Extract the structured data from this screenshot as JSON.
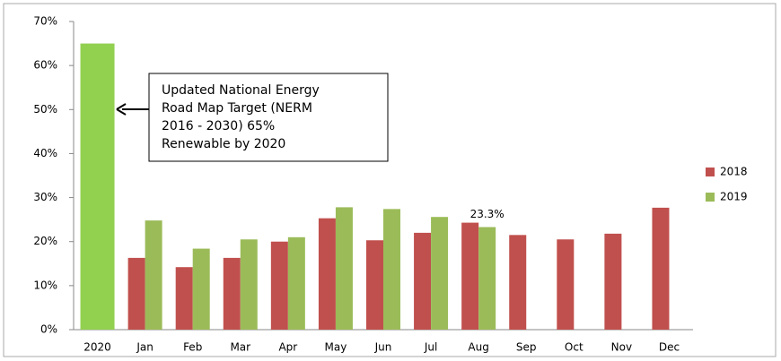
{
  "chart_data": {
    "type": "bar",
    "categories": [
      "2020",
      "Jan",
      "Feb",
      "Mar",
      "Apr",
      "May",
      "Jun",
      "Jul",
      "Aug",
      "Sep",
      "Oct",
      "Nov",
      "Dec"
    ],
    "series": [
      {
        "name": "2018",
        "color": "#c0504d",
        "values": [
          null,
          16.3,
          14.2,
          16.3,
          20,
          25.3,
          20.3,
          22,
          24.3,
          21.5,
          20.5,
          21.8,
          27.7
        ]
      },
      {
        "name": "2019",
        "color": "#9bbb59",
        "colors": [
          "#92d050",
          "#9bbb59",
          "#9bbb59",
          "#9bbb59",
          "#9bbb59",
          "#9bbb59",
          "#9bbb59",
          "#9bbb59",
          "#9bbb59",
          null,
          null,
          null,
          null
        ],
        "values": [
          65,
          24.8,
          18.4,
          20.5,
          21,
          27.8,
          27.4,
          25.6,
          23.3,
          null,
          null,
          null,
          null
        ],
        "value_labels": [
          null,
          null,
          null,
          null,
          null,
          null,
          null,
          null,
          "23.3%",
          null,
          null,
          null,
          null
        ]
      }
    ],
    "ylim": [
      0,
      70
    ],
    "yticks": [
      {
        "value": 0,
        "label": "0%"
      },
      {
        "value": 10,
        "label": "10%"
      },
      {
        "value": 20,
        "label": "20%"
      },
      {
        "value": 30,
        "label": "30%"
      },
      {
        "value": 40,
        "label": "40%"
      },
      {
        "value": 50,
        "label": "50%"
      },
      {
        "value": 60,
        "label": "60%"
      },
      {
        "value": 70,
        "label": "70%"
      }
    ],
    "grid": false,
    "legend": "right",
    "annotation": {
      "lines": [
        "Updated National Energy",
        "Road Map Target (NERM",
        "2016 - 2030) 65%",
        "Renewable by 2020"
      ]
    }
  }
}
